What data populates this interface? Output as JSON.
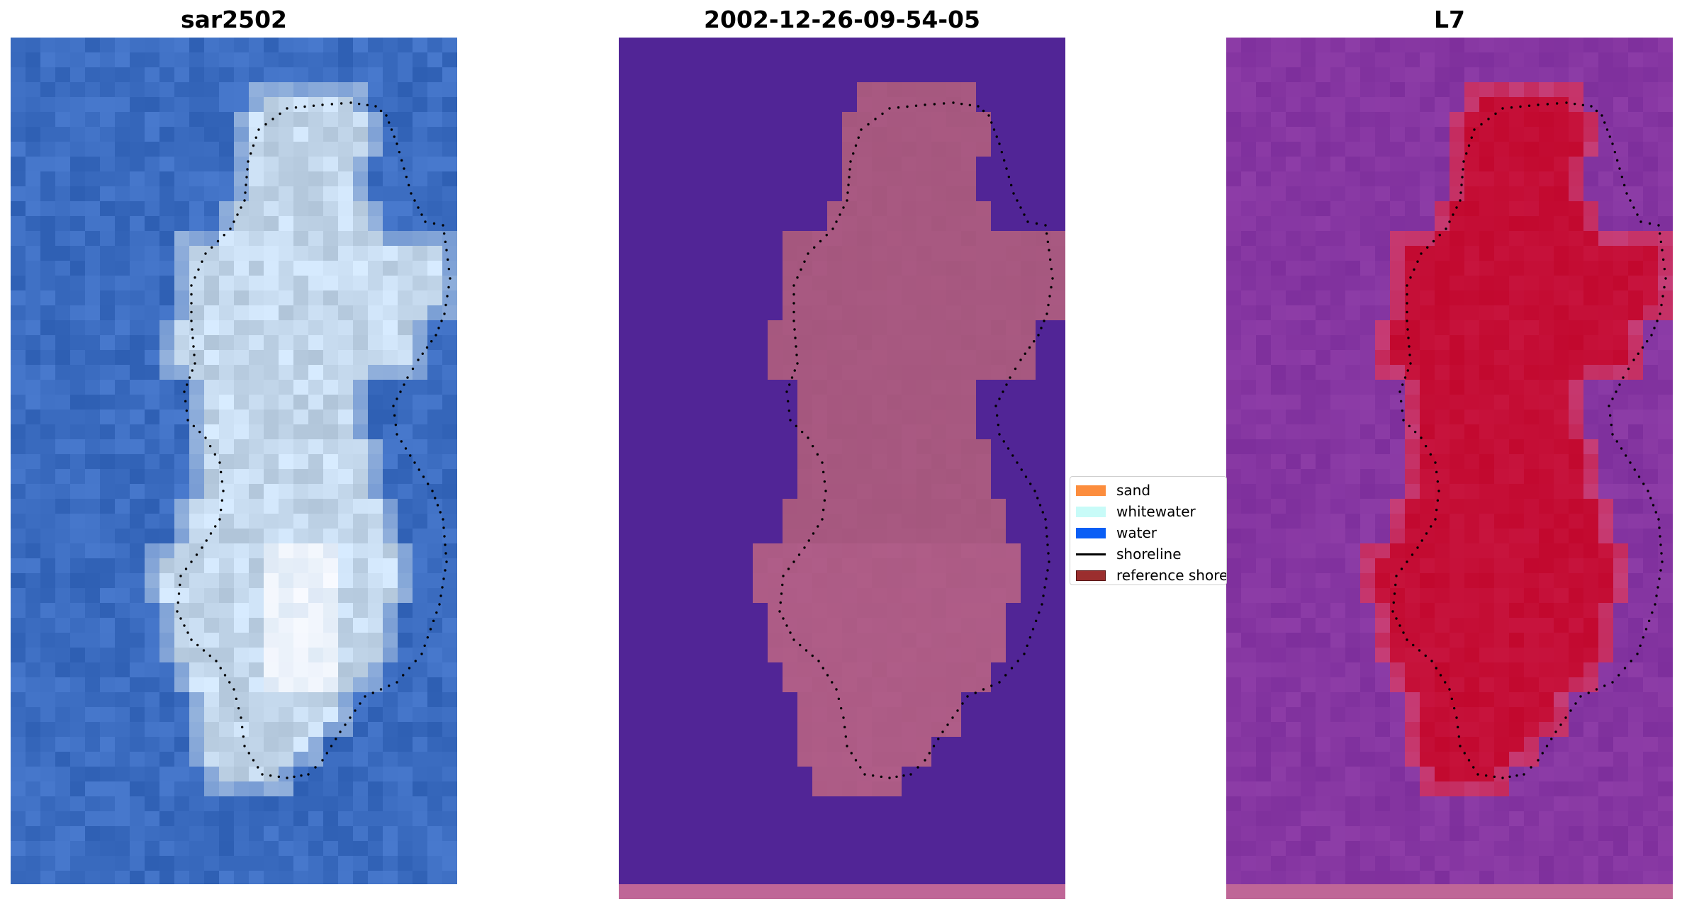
{
  "panels": {
    "left": {
      "title": "sar2502"
    },
    "middle": {
      "title": "2002-12-26-09-54-05"
    },
    "right": {
      "title": "L7"
    }
  },
  "legend": {
    "items": [
      {
        "label": "sand",
        "color": "#fc8d3d",
        "kind": "patch"
      },
      {
        "label": "whitewater",
        "color": "#c8fbf8",
        "kind": "patch"
      },
      {
        "label": "water",
        "color": "#0a5ef5",
        "kind": "patch"
      },
      {
        "label": "shoreline",
        "color": "#000000",
        "kind": "line"
      },
      {
        "label": "reference shoreline",
        "color": "#9b2e2e",
        "kind": "patch"
      }
    ]
  },
  "colors": {
    "sar_water": "#3b6cc0",
    "sar_land": "#c4d8ec",
    "sar_bright": "#f8faff",
    "class_water": "#512596",
    "class_land": "#a5577e",
    "class_strip": "#bf6697",
    "mndwi_water": "#7e2f9c",
    "mndwi_land": "#c2082e",
    "mndwi_edge": "#c85090",
    "shoreline_dots": "#000000"
  }
}
